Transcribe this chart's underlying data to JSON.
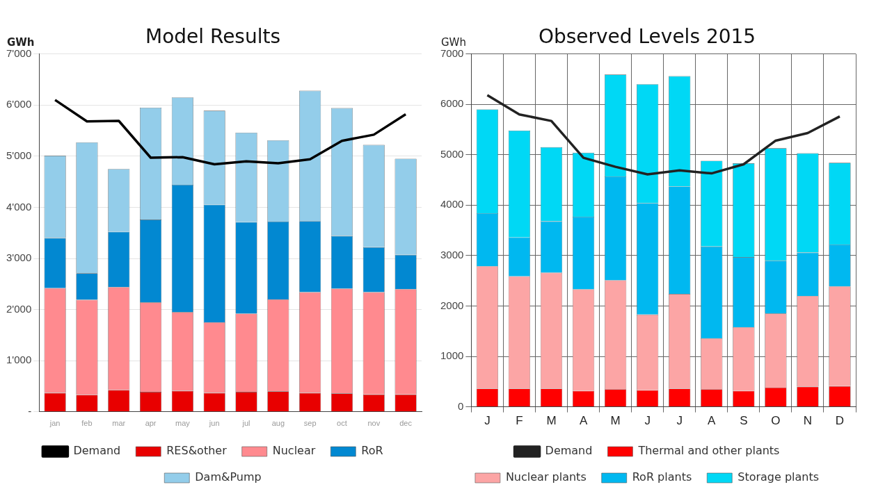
{
  "chart_data": [
    {
      "type": "bar",
      "title": "Model Results",
      "ylabel": "GWh",
      "categories": [
        "jan",
        "feb",
        "mar",
        "apr",
        "may",
        "jun",
        "jul",
        "aug",
        "sep",
        "oct",
        "nov",
        "dec"
      ],
      "stacked": true,
      "grid": "y",
      "legend": "bottom",
      "marker": "none",
      "ylim": [
        0,
        7000
      ],
      "yticks": [
        {
          "value": 0,
          "label": "-"
        },
        {
          "value": 1000,
          "label": "1'000"
        },
        {
          "value": 2000,
          "label": "2'000"
        },
        {
          "value": 3000,
          "label": "3'000"
        },
        {
          "value": 4000,
          "label": "4'000"
        },
        {
          "value": 5000,
          "label": "5'000"
        },
        {
          "value": 6000,
          "label": "6'000"
        },
        {
          "value": 7000,
          "label": "7'000"
        }
      ],
      "series": [
        {
          "name": "RES&other",
          "color": "#e80000",
          "values": [
            370,
            330,
            425,
            390,
            410,
            370,
            390,
            400,
            370,
            360,
            340,
            340
          ]
        },
        {
          "name": "Nuclear",
          "color": "#ff8a8f",
          "values": [
            2050,
            1860,
            2015,
            1750,
            1540,
            1380,
            1530,
            1800,
            1970,
            2050,
            2000,
            2060
          ]
        },
        {
          "name": "RoR",
          "color": "#0288d1",
          "values": [
            980,
            520,
            1080,
            1620,
            2490,
            2300,
            1790,
            1520,
            1390,
            1030,
            880,
            670
          ]
        },
        {
          "name": "Dam&Pump",
          "color": "#93cdea",
          "values": [
            1610,
            2560,
            1230,
            2190,
            1710,
            1840,
            1750,
            1590,
            2550,
            2500,
            2000,
            1880
          ]
        },
        {
          "name": "Demand",
          "type": "line",
          "color": "#000000",
          "values": [
            6100,
            5680,
            5690,
            4970,
            4980,
            4840,
            4900,
            4860,
            4940,
            5300,
            5420,
            5820
          ]
        }
      ]
    },
    {
      "type": "bar",
      "title": "Observed Levels 2015",
      "ylabel": "GWh",
      "categories": [
        "J",
        "F",
        "M",
        "A",
        "M",
        "J",
        "J",
        "A",
        "S",
        "O",
        "N",
        "D"
      ],
      "stacked": true,
      "grid": true,
      "legend": "bottom",
      "marker": "none",
      "ylim": [
        0,
        7000
      ],
      "yticks": [
        0,
        1000,
        2000,
        3000,
        4000,
        5000,
        6000,
        7000
      ],
      "series": [
        {
          "name": "Thermal and other plants",
          "color": "#ff0000",
          "values": [
            360,
            360,
            360,
            315,
            350,
            330,
            360,
            350,
            315,
            380,
            400,
            410
          ]
        },
        {
          "name": "Nuclear plants",
          "color": "#fca5a5",
          "values": [
            2430,
            2230,
            2300,
            2015,
            2160,
            1500,
            1880,
            1010,
            1265,
            1470,
            1800,
            1980
          ]
        },
        {
          "name": "RoR plants",
          "color": "#00b8f0",
          "values": [
            1050,
            770,
            1020,
            1440,
            2060,
            2210,
            2130,
            1820,
            1390,
            1050,
            860,
            830
          ]
        },
        {
          "name": "Storage plants",
          "color": "#00d8f5",
          "values": [
            2060,
            2120,
            1470,
            1270,
            2020,
            2360,
            2190,
            1700,
            1860,
            2230,
            1970,
            1620
          ]
        },
        {
          "name": "Demand",
          "type": "line",
          "color": "#222222",
          "values": [
            6180,
            5800,
            5670,
            4940,
            4760,
            4610,
            4690,
            4630,
            4810,
            5280,
            5430,
            5760
          ]
        }
      ]
    }
  ]
}
